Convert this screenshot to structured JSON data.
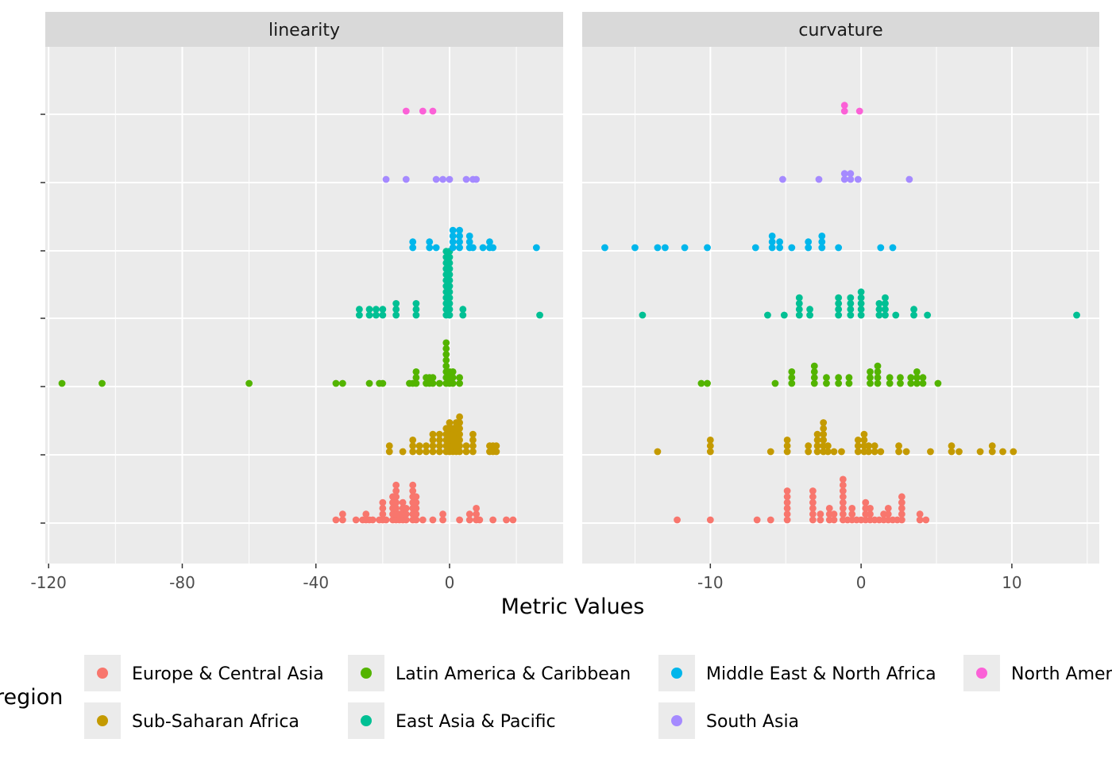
{
  "chart_data": {
    "type": "scatter",
    "style": "dotplot (stacked dots, faceted by metric)",
    "xlabel": "Metric Values",
    "ylabel": "",
    "legend": {
      "title": "region",
      "placement": "bottom",
      "entries": [
        "Europe & Central Asia",
        "Latin America & Caribbean",
        "Middle East & North Africa",
        "North America",
        "Sub-Saharan Africa",
        "East Asia & Pacific",
        "South Asia"
      ]
    },
    "series_order": [
      "Europe & Central Asia",
      "Sub-Saharan Africa",
      "Latin America & Caribbean",
      "East Asia & Pacific",
      "Middle East & North Africa",
      "South Asia",
      "North America"
    ],
    "colors": {
      "Europe & Central Asia": "#F8766D",
      "Sub-Saharan Africa": "#C49A00",
      "Latin America & Caribbean": "#53B400",
      "East Asia & Pacific": "#00C094",
      "Middle East & North Africa": "#00B6EB",
      "South Asia": "#A58AFF",
      "North America": "#FB61D7"
    },
    "grid": true,
    "panels": [
      {
        "strip": "linearity",
        "xlim": [
          -121,
          34
        ],
        "xticks": [
          -120,
          -80,
          -40,
          0
        ],
        "xtick_labels": [
          "-120",
          "-80",
          "-40",
          "0"
        ],
        "series": [
          {
            "name": "Europe & Central Asia",
            "values": [
              -34,
              -32,
              -32,
              -28,
              -26,
              -25,
              -25,
              -24,
              -23,
              -21,
              -20,
              -20,
              -20,
              -20,
              -19,
              -17,
              -17,
              -17,
              -17,
              -17,
              -16,
              -16,
              -16,
              -16,
              -16,
              -16,
              -16,
              -15,
              -15,
              -14,
              -14,
              -14,
              -14,
              -13,
              -13,
              -13,
              -11,
              -11,
              -11,
              -11,
              -11,
              -11,
              -11,
              -10,
              -10,
              -10,
              -10,
              -10,
              -8,
              -5,
              -2,
              -2,
              3,
              6,
              6,
              8,
              8,
              8,
              9,
              13,
              17,
              19
            ]
          },
          {
            "name": "Sub-Saharan Africa",
            "values": [
              -18,
              -18,
              -14,
              -11,
              -11,
              -11,
              -9,
              -9,
              -7,
              -7,
              -5,
              -5,
              -5,
              -5,
              -3,
              -3,
              -3,
              -3,
              -1,
              -1,
              -1,
              -1,
              -1,
              0,
              0,
              0,
              0,
              0,
              0,
              1,
              1,
              1,
              1,
              1,
              2,
              2,
              2,
              2,
              2,
              2,
              3,
              3,
              3,
              3,
              3,
              3,
              3,
              5,
              5,
              7,
              7,
              7,
              7,
              12,
              12,
              13,
              13,
              14,
              14
            ]
          },
          {
            "name": "Latin America & Caribbean",
            "values": [
              -116,
              -104,
              -60,
              -34,
              -32,
              -24,
              -21,
              -20,
              -12,
              -11,
              -10,
              -10,
              -10,
              -7,
              -7,
              -6,
              -6,
              -5,
              -5,
              -3,
              -1,
              -1,
              -1,
              -1,
              -1,
              -1,
              -1,
              -1,
              0,
              0,
              0,
              1,
              1,
              1,
              3,
              3
            ]
          },
          {
            "name": "East Asia & Pacific",
            "values": [
              -27,
              -27,
              -24,
              -24,
              -22,
              -22,
              -20,
              -20,
              -16,
              -16,
              -16,
              -10,
              -10,
              -10,
              -1,
              -1,
              -1,
              -1,
              -1,
              -1,
              -1,
              -1,
              -1,
              -1,
              -1,
              -1,
              0,
              0,
              0,
              0,
              0,
              0,
              0,
              0,
              0,
              0,
              0,
              0,
              4,
              4,
              27
            ]
          },
          {
            "name": "Middle East & North Africa",
            "values": [
              -11,
              -11,
              -6,
              -6,
              -4,
              1,
              1,
              1,
              1,
              3,
              3,
              3,
              3,
              6,
              6,
              6,
              7,
              10,
              12,
              12,
              13,
              26
            ]
          },
          {
            "name": "South Asia",
            "values": [
              -19,
              -13,
              -4,
              -2,
              0,
              5,
              7,
              8
            ]
          },
          {
            "name": "North America",
            "values": [
              -13,
              -8,
              -5
            ]
          }
        ]
      },
      {
        "strip": "curvature",
        "xlim": [
          -18.5,
          15.8
        ],
        "xticks": [
          -10,
          0,
          10
        ],
        "xtick_labels": [
          "-10",
          "0",
          "10"
        ],
        "series": [
          {
            "name": "Europe & Central Asia",
            "values": [
              -12.2,
              -10,
              -6.9,
              -6,
              -4.9,
              -4.9,
              -4.9,
              -4.9,
              -4.9,
              -4.9,
              -3.2,
              -3.2,
              -3.2,
              -3.2,
              -3.2,
              -3.2,
              -2.7,
              -2.7,
              -2.1,
              -2.1,
              -2.1,
              -1.8,
              -1.8,
              -1.2,
              -1.2,
              -1.2,
              -1.2,
              -1.2,
              -1.2,
              -1.2,
              -1.2,
              -0.9,
              -0.6,
              -0.6,
              -0.6,
              -0.3,
              0,
              0.3,
              0.3,
              0.3,
              0.3,
              0.6,
              0.6,
              0.6,
              0.9,
              1.2,
              1.5,
              1.5,
              1.8,
              1.8,
              1.8,
              2.1,
              2.4,
              2.7,
              2.7,
              2.7,
              2.7,
              2.7,
              3.9,
              3.9,
              4.3
            ]
          },
          {
            "name": "Sub-Saharan Africa",
            "values": [
              -13.5,
              -10,
              -10,
              -10,
              -6,
              -4.9,
              -4.9,
              -4.9,
              -3.5,
              -3.5,
              -2.9,
              -2.9,
              -2.9,
              -2.9,
              -2.5,
              -2.5,
              -2.5,
              -2.5,
              -2.5,
              -2.5,
              -2.2,
              -2.2,
              -1.8,
              -1.3,
              -0.2,
              -0.2,
              -0.2,
              0.2,
              0.2,
              0.2,
              0.2,
              0.5,
              0.5,
              0.9,
              0.9,
              1.3,
              2.5,
              2.5,
              3,
              4.6,
              6,
              6,
              6.5,
              7.9,
              8.7,
              8.7,
              9.4,
              10.1
            ]
          },
          {
            "name": "Latin America & Caribbean",
            "values": [
              -10.6,
              -10.2,
              -5.7,
              -4.6,
              -4.6,
              -4.6,
              -3.1,
              -3.1,
              -3.1,
              -3.1,
              -2.3,
              -2.3,
              -1.5,
              -1.5,
              -0.8,
              -0.8,
              0.6,
              0.6,
              0.6,
              1.1,
              1.1,
              1.1,
              1.1,
              1.9,
              1.9,
              2.6,
              2.6,
              3.3,
              3.3,
              3.7,
              3.7,
              3.7,
              4.1,
              4.1,
              5.1
            ]
          },
          {
            "name": "East Asia & Pacific",
            "values": [
              -14.5,
              -6.2,
              -5.1,
              -4.1,
              -4.1,
              -4.1,
              -4.1,
              -3.4,
              -3.4,
              -1.5,
              -1.5,
              -1.5,
              -1.5,
              -0.7,
              -0.7,
              -0.7,
              -0.7,
              0,
              0,
              0,
              0,
              0,
              1.2,
              1.2,
              1.2,
              1.6,
              1.6,
              1.6,
              1.6,
              2.3,
              3.5,
              3.5,
              4.4,
              14.3
            ]
          },
          {
            "name": "Middle East & North Africa",
            "values": [
              -17,
              -15,
              -13.5,
              -13,
              -11.7,
              -10.2,
              -7,
              -5.9,
              -5.9,
              -5.9,
              -5.4,
              -5.4,
              -4.6,
              -3.5,
              -3.5,
              -2.6,
              -2.6,
              -2.6,
              -1.5,
              1.3,
              2.1
            ]
          },
          {
            "name": "South Asia",
            "values": [
              -5.2,
              -2.8,
              -1.1,
              -1.1,
              -0.7,
              -0.7,
              -0.2,
              3.2
            ]
          },
          {
            "name": "North America",
            "values": [
              -1.1,
              -1.1,
              -0.1
            ]
          }
        ]
      }
    ]
  }
}
